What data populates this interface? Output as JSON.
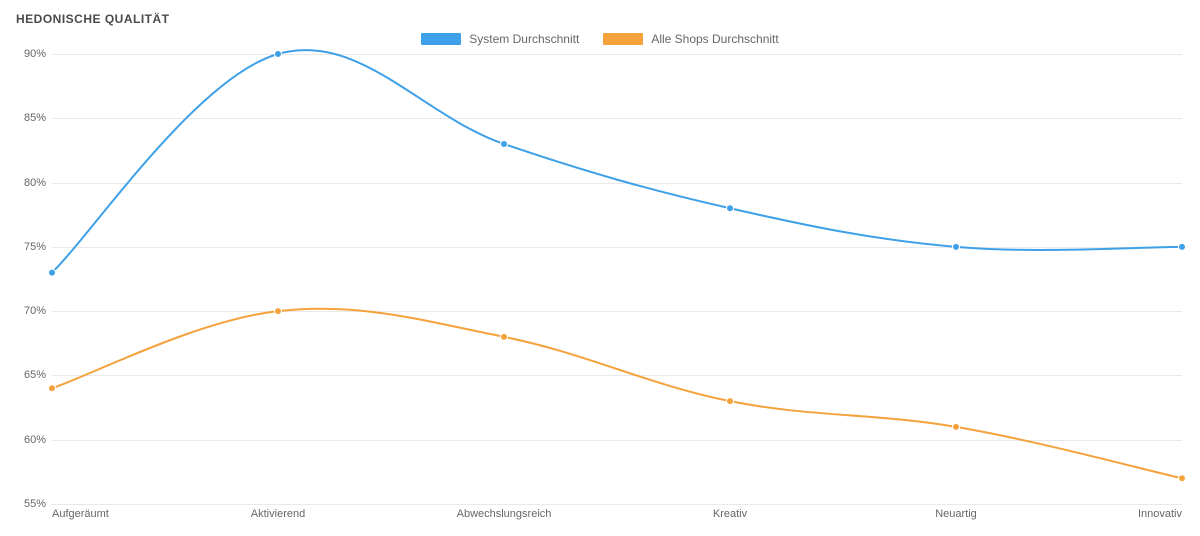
{
  "chart": {
    "type": "line",
    "title": "HEDONISCHE QUALITÄT",
    "title_fontsize": 12,
    "title_color": "#4a4a4a",
    "background_color": "#ffffff",
    "grid_color": "#e9e9e9",
    "axis_label_color": "#666666",
    "axis_label_fontsize": 11,
    "ylim": [
      55,
      90
    ],
    "ytick_step": 5,
    "ytick_suffix": "%",
    "categories": [
      "Aufgeräumt",
      "Aktivierend",
      "Abwechslungsreich",
      "Kreativ",
      "Neuartig",
      "Innovativ"
    ],
    "series": [
      {
        "name": "System Durchschnitt",
        "color": "#3ea0e8",
        "line_width": 2,
        "marker_radius": 3.5,
        "values": [
          73,
          90,
          83,
          78,
          75,
          75
        ]
      },
      {
        "name": "Alle Shops Durchschnitt",
        "color": "#f5a23d",
        "line_width": 2,
        "marker_radius": 3.5,
        "values": [
          64,
          70,
          68,
          63,
          61,
          57
        ]
      }
    ],
    "legend": {
      "position": "top-center",
      "swatch_width": 40,
      "swatch_height": 12,
      "fontsize": 12
    },
    "curve": "smooth"
  }
}
